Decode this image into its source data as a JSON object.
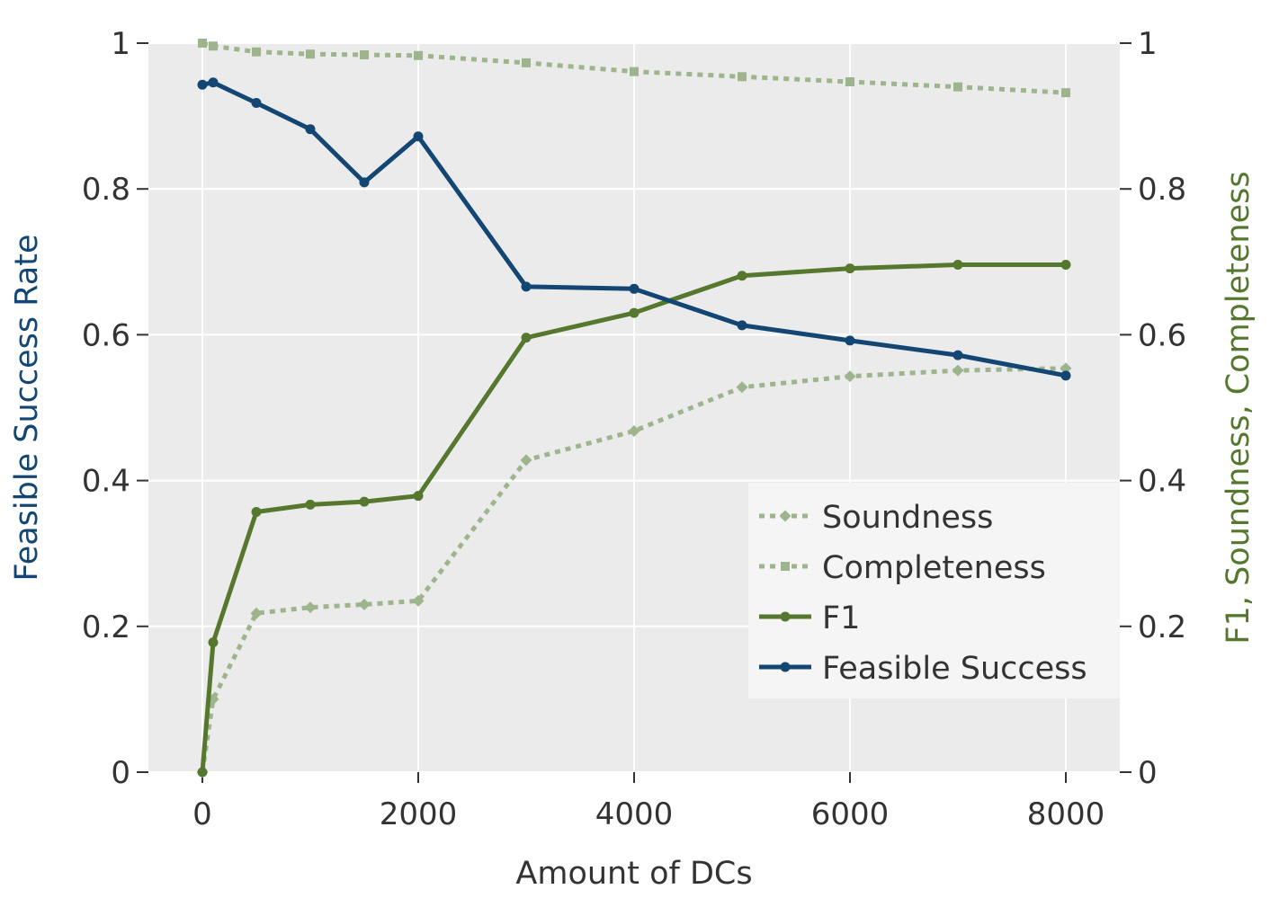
{
  "chart_data": {
    "type": "line",
    "xlabel": "Amount of DCs",
    "ylabel_left": "Feasible Success Rate",
    "ylabel_right": "F1, Soundness, Completeness",
    "xlim": [
      -500,
      8500
    ],
    "ylim_left": [
      0,
      1
    ],
    "ylim_right": [
      0,
      1
    ],
    "xticks": [
      0,
      2000,
      4000,
      6000,
      8000
    ],
    "xtick_labels": [
      "0",
      "2000",
      "4000",
      "6000",
      "8000"
    ],
    "yticks": [
      0,
      0.2,
      0.4,
      0.6,
      0.8,
      1
    ],
    "ytick_labels_left": [
      "0",
      "0.2",
      "0.4",
      "0.6",
      "0.8",
      "1"
    ],
    "ytick_labels_right": [
      "0",
      "0.2",
      "0.4",
      "0.6",
      "0.8",
      "1"
    ],
    "grid": true,
    "legend_position": "lower-right",
    "series": [
      {
        "name": "Soundness",
        "axis": "right",
        "style": "dotted",
        "marker": "diamond",
        "color": "#9eb48c",
        "x": [
          0,
          100,
          500,
          1000,
          1500,
          2000,
          3000,
          4000,
          5000,
          6000,
          7000,
          8000
        ],
        "y": [
          0.0,
          0.1,
          0.218,
          0.226,
          0.23,
          0.235,
          0.428,
          0.468,
          0.528,
          0.543,
          0.551,
          0.554
        ]
      },
      {
        "name": "Completeness",
        "axis": "right",
        "style": "dotted",
        "marker": "square",
        "color": "#9eb48c",
        "x": [
          0,
          100,
          500,
          1000,
          1500,
          2000,
          3000,
          4000,
          5000,
          6000,
          7000,
          8000
        ],
        "y": [
          1.0,
          0.996,
          0.988,
          0.985,
          0.984,
          0.983,
          0.973,
          0.961,
          0.954,
          0.947,
          0.94,
          0.932
        ]
      },
      {
        "name": "F1",
        "axis": "right",
        "style": "solid",
        "marker": "circle",
        "color": "#56782e",
        "x": [
          0,
          100,
          500,
          1000,
          1500,
          2000,
          3000,
          4000,
          5000,
          6000,
          7000,
          8000
        ],
        "y": [
          0.0,
          0.178,
          0.357,
          0.367,
          0.371,
          0.379,
          0.596,
          0.63,
          0.681,
          0.691,
          0.696,
          0.696
        ]
      },
      {
        "name": "Feasible Success",
        "axis": "left",
        "style": "solid",
        "marker": "circle",
        "color": "#144673",
        "x": [
          0,
          100,
          500,
          1000,
          1500,
          2000,
          3000,
          4000,
          5000,
          6000,
          7000,
          8000
        ],
        "y": [
          0.943,
          0.946,
          0.918,
          0.882,
          0.809,
          0.872,
          0.666,
          0.663,
          0.613,
          0.592,
          0.572,
          0.544
        ]
      }
    ],
    "legend_order": [
      "Soundness",
      "Completeness",
      "F1",
      "Feasible Success"
    ],
    "colors": {
      "plot_background": "#ebebeb",
      "grid": "#ffffff",
      "legend_background": "#f5f5f5",
      "left_axis_title": "#144673",
      "right_axis_title": "#56782e",
      "ticks": "#333333"
    }
  }
}
